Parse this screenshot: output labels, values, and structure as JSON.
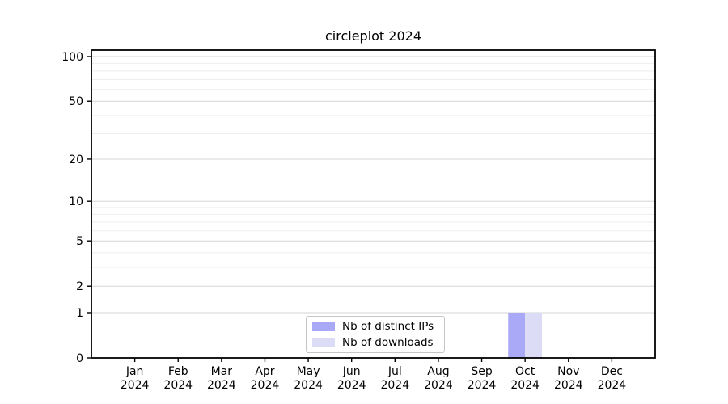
{
  "chart_data": {
    "type": "bar",
    "title": "circleplot 2024",
    "year": "2024",
    "categories": [
      "Jan",
      "Feb",
      "Mar",
      "Apr",
      "May",
      "Jun",
      "Jul",
      "Aug",
      "Sep",
      "Oct",
      "Nov",
      "Dec"
    ],
    "series": [
      {
        "name": "Nb of distinct IPs",
        "color": "#a9a9f8",
        "values": [
          0,
          0,
          0,
          0,
          0,
          0,
          0,
          0,
          0,
          1,
          0,
          0
        ]
      },
      {
        "name": "Nb of downloads",
        "color": "#dcdcf6",
        "values": [
          0,
          0,
          0,
          0,
          0,
          0,
          0,
          0,
          0,
          1,
          0,
          0
        ]
      }
    ],
    "y_axis": {
      "scale": "log10(value+1)",
      "range": [
        0,
        100
      ],
      "major_ticks": [
        0,
        1,
        2,
        5,
        10,
        20,
        50,
        100
      ],
      "minor_gridlines": [
        3,
        4,
        6,
        7,
        8,
        9,
        30,
        40,
        60,
        70,
        80,
        90
      ]
    },
    "legend_position": "bottom-center",
    "grid": "horizontal"
  },
  "colors": {
    "background": "#ffffff",
    "axis": "#000000",
    "text": "#000000",
    "major_gridline": "#d6d6d6",
    "minor_gridline": "#eeeeee",
    "legend_border": "#c6c6c6"
  }
}
